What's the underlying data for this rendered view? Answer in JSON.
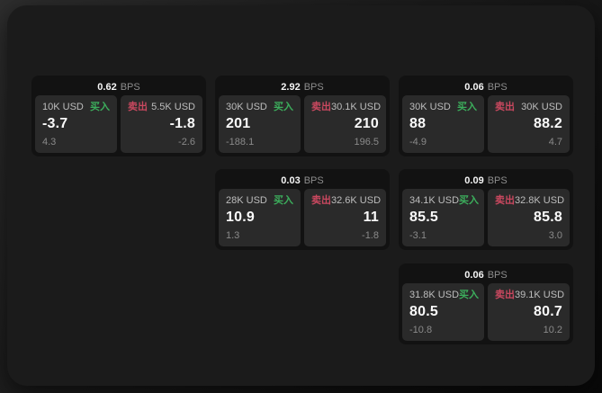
{
  "labels": {
    "unit": "BPS",
    "buy": "买入",
    "sell": "卖出"
  },
  "colors": {
    "buy_green": "#3cae5c",
    "sell_red": "#c9485f",
    "panel_bg": "#1b1b1b",
    "card_bg": "#121212",
    "tile_bg": "#2a2a2a"
  },
  "cards": [
    {
      "bps": "0.62",
      "buy": {
        "amount": "10K USD",
        "value": "-3.7",
        "delta": "4.3"
      },
      "sell": {
        "amount": "5.5K USD",
        "value": "-1.8",
        "delta": "-2.6"
      }
    },
    {
      "bps": "2.92",
      "buy": {
        "amount": "30K USD",
        "value": "201",
        "delta": "-188.1"
      },
      "sell": {
        "amount": "30.1K USD",
        "value": "210",
        "delta": "196.5"
      }
    },
    {
      "bps": "0.06",
      "buy": {
        "amount": "30K USD",
        "value": "88",
        "delta": "-4.9"
      },
      "sell": {
        "amount": "30K USD",
        "value": "88.2",
        "delta": "4.7"
      }
    },
    {
      "bps": "0.03",
      "buy": {
        "amount": "28K USD",
        "value": "10.9",
        "delta": "1.3"
      },
      "sell": {
        "amount": "32.6K USD",
        "value": "11",
        "delta": "-1.8"
      }
    },
    {
      "bps": "0.09",
      "buy": {
        "amount": "34.1K USD",
        "value": "85.5",
        "delta": "-3.1"
      },
      "sell": {
        "amount": "32.8K USD",
        "value": "85.8",
        "delta": "3.0"
      }
    },
    {
      "bps": "0.06",
      "buy": {
        "amount": "31.8K USD",
        "value": "80.5",
        "delta": "-10.8"
      },
      "sell": {
        "amount": "39.1K USD",
        "value": "80.7",
        "delta": "10.2"
      }
    }
  ]
}
